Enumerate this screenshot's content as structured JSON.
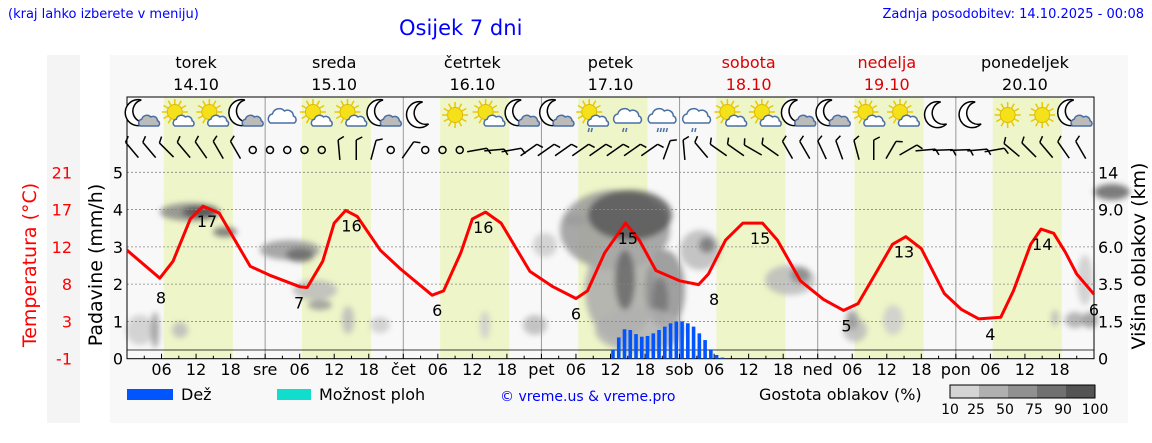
{
  "header": {
    "hint": "(kraj lahko izberete v meniju)",
    "title": "Osijek 7 dni",
    "updated": "Zadnja posodobitev: 14.10.2025 - 00:08"
  },
  "colors": {
    "temperature": "#ff0000",
    "rain": "#0055ff",
    "showers": "#11ddcc",
    "daylight": "#eef5c8",
    "weekend": "#dd0000"
  },
  "days": [
    {
      "name": "torek",
      "date": "14.10",
      "abbr": "",
      "weekend": false
    },
    {
      "name": "sreda",
      "date": "15.10",
      "abbr": "sre",
      "weekend": false
    },
    {
      "name": "četrtek",
      "date": "16.10",
      "abbr": "čet",
      "weekend": false
    },
    {
      "name": "petek",
      "date": "17.10",
      "abbr": "pet",
      "weekend": false
    },
    {
      "name": "sobota",
      "date": "18.10",
      "abbr": "sob",
      "weekend": true
    },
    {
      "name": "nedelja",
      "date": "19.10",
      "abbr": "ned",
      "weekend": true
    },
    {
      "name": "ponedeljek",
      "date": "20.10",
      "abbr": "pon",
      "weekend": false
    }
  ],
  "icons": [
    "moon-cloud",
    "sun-cloud",
    "sun-cloud",
    "moon-cloud",
    "cloud",
    "sun-cloud",
    "sun-cloud",
    "moon-cloud",
    "moon",
    "sun",
    "sun-cloud",
    "moon-cloud",
    "moon-cloud",
    "sun-cloud-rain",
    "cloud-rain",
    "cloud-heavy-rain",
    "cloud-rain",
    "sun-cloud",
    "sun-cloud",
    "moon-cloud",
    "moon-cloud",
    "sun-cloud",
    "sun-cloud",
    "moon",
    "moon",
    "sun",
    "sun",
    "moon-cloud"
  ],
  "wind_shaft_angles_3h": [
    -40,
    -40,
    -45,
    -40,
    -35,
    -30,
    -30,
    null,
    null,
    null,
    null,
    null,
    -5,
    0,
    15,
    null,
    35,
    null,
    null,
    null,
    80,
    85,
    80,
    55,
    55,
    55,
    55,
    55,
    55,
    55,
    55,
    20,
    -5,
    -40,
    -55,
    -55,
    -60,
    -55,
    -30,
    -30,
    -25,
    -20,
    -15,
    0,
    30,
    60,
    85,
    88,
    88,
    85,
    80,
    -50,
    -45,
    -40,
    -35,
    -30
  ],
  "chart_data": {
    "type": "line",
    "title": "Osijek 7 dni",
    "x_unit": "hours from 14.10 00:00",
    "xlim": [
      0,
      168
    ],
    "x_tick_labels": [
      "06",
      "12",
      "18"
    ],
    "temperature": {
      "axis_label": "Temperatura (°C)",
      "ticks": [
        "21",
        "17",
        "12",
        "8",
        "3",
        "-1"
      ],
      "ylim": [
        -1,
        21
      ],
      "points": [
        [
          0,
          11.8
        ],
        [
          5.7,
          8.5
        ],
        [
          8,
          10.5
        ],
        [
          11,
          15.5
        ],
        [
          13.2,
          17
        ],
        [
          16,
          16.2
        ],
        [
          21.4,
          9.9
        ],
        [
          25,
          8.8
        ],
        [
          30,
          7.5
        ],
        [
          31.3,
          7.4
        ],
        [
          34,
          10.5
        ],
        [
          36,
          15
        ],
        [
          38,
          16.5
        ],
        [
          40,
          15.8
        ],
        [
          44,
          11.8
        ],
        [
          47.5,
          9.6
        ],
        [
          53,
          6.5
        ],
        [
          55,
          7
        ],
        [
          58,
          11.5
        ],
        [
          60,
          15.5
        ],
        [
          62.3,
          16.3
        ],
        [
          65,
          15
        ],
        [
          70,
          9.3
        ],
        [
          74,
          7.5
        ],
        [
          78,
          6.1
        ],
        [
          80,
          7
        ],
        [
          83,
          11.5
        ],
        [
          86.6,
          15
        ],
        [
          89,
          13
        ],
        [
          91.9,
          9.4
        ],
        [
          96,
          8.2
        ],
        [
          99.3,
          7.75
        ],
        [
          101,
          9
        ],
        [
          104,
          13
        ],
        [
          107,
          15
        ],
        [
          110.4,
          15
        ],
        [
          113,
          13
        ],
        [
          117,
          8.2
        ],
        [
          121,
          6
        ],
        [
          124.5,
          4.7
        ],
        [
          127,
          5.5
        ],
        [
          130,
          9
        ],
        [
          133,
          12.5
        ],
        [
          135.3,
          13.4
        ],
        [
          138,
          12
        ],
        [
          142,
          6.7
        ],
        [
          145,
          4.8
        ],
        [
          148,
          3.7
        ],
        [
          151.8,
          3.9
        ],
        [
          154,
          7
        ],
        [
          157,
          12.5
        ],
        [
          158.8,
          14.3
        ],
        [
          161,
          13.8
        ],
        [
          163,
          11.6
        ],
        [
          165,
          9
        ],
        [
          168,
          6.6
        ]
      ],
      "labels": [
        [
          5.9,
          8,
          "8"
        ],
        [
          13.9,
          17,
          "17"
        ],
        [
          29.9,
          7.4,
          "7"
        ],
        [
          39,
          16.5,
          "16"
        ],
        [
          53.9,
          6.5,
          "6"
        ],
        [
          61.9,
          16.3,
          "16"
        ],
        [
          78,
          6.1,
          "6"
        ],
        [
          87,
          15,
          "15"
        ],
        [
          102,
          7.8,
          "8"
        ],
        [
          110,
          15,
          "15"
        ],
        [
          125,
          4.7,
          "5"
        ],
        [
          135,
          13.4,
          "13"
        ],
        [
          150,
          3.7,
          "4"
        ],
        [
          159,
          14.3,
          "14"
        ],
        [
          168,
          6.6,
          "6"
        ]
      ]
    },
    "precipitation": {
      "axis_label": "Padavine (mm/h)",
      "ticks": [
        "5",
        "4",
        "3",
        "2",
        "1",
        "0"
      ],
      "ylim": [
        0,
        5
      ],
      "start_hour": 84,
      "values": [
        0.25,
        0.57,
        0.79,
        0.77,
        0.66,
        0.59,
        0.61,
        0.68,
        0.77,
        0.86,
        0.95,
        1.0,
        1.0,
        0.95,
        0.86,
        0.68,
        0.5,
        0.25,
        0.1,
        0.03
      ]
    },
    "cloud_height": {
      "axis_label": "Višina oblakov (km)",
      "ticks": [
        "14",
        "9.0",
        "6.0",
        "3.5",
        "1.5",
        "0"
      ]
    },
    "legend": {
      "rain": "Dež",
      "showers": "Možnost ploh",
      "credit": "© vreme.us & vreme.pro",
      "cloud_density": "Gostota oblakov (%)",
      "density_levels": [
        "10",
        "25",
        "50",
        "75",
        "90",
        "100"
      ],
      "density_colors": [
        "#d4d4d4",
        "#b0b0b0",
        "#909090",
        "#707070",
        "#545454"
      ]
    }
  }
}
